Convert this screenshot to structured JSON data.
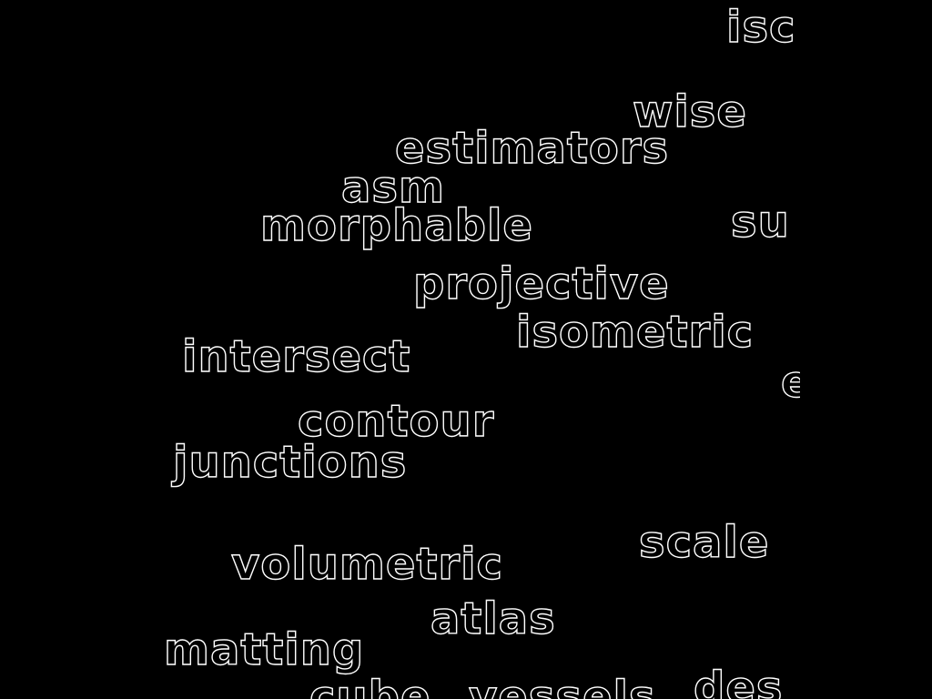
{
  "words": {
    "isc": "isc",
    "wise": "wise",
    "estimators": "estimators",
    "asm": "asm",
    "morphable": "morphable",
    "su": "su",
    "projective": "projective",
    "isometric": "isometric",
    "intersect": "intersect",
    "e": "e",
    "contour": "contour",
    "junctions": "junctions",
    "scale": "scale",
    "volumetric": "volumetric",
    "atlas": "atlas",
    "matting": "matting",
    "cube": "cube",
    "vessels": "vessels",
    "des": "des"
  },
  "colors": {
    "background": "#000000",
    "outline": "#ffffff"
  }
}
